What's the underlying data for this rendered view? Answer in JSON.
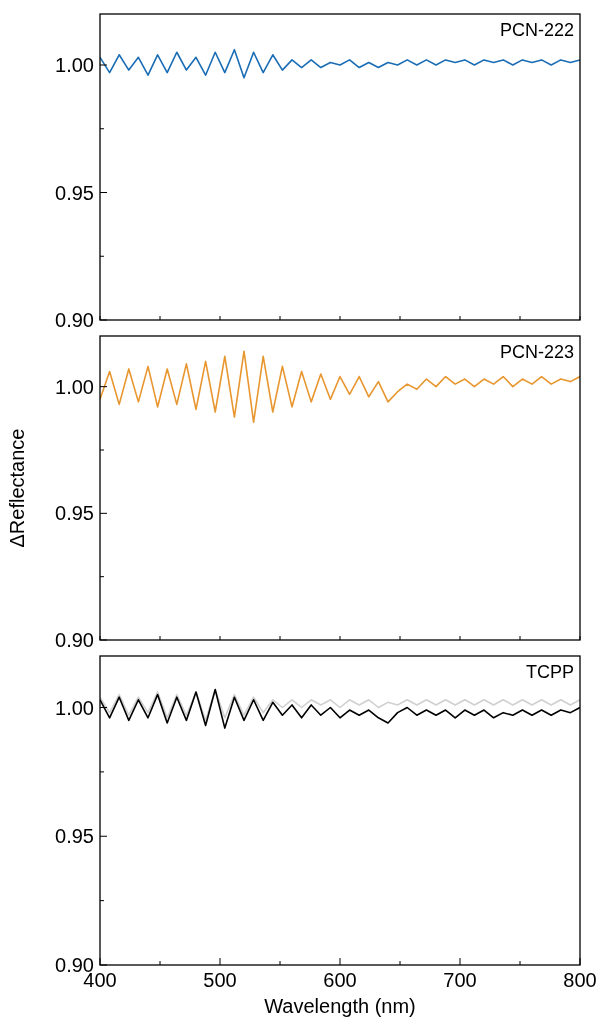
{
  "chart_data": [
    {
      "type": "line",
      "title": "PCN-222",
      "tick_labels": "y",
      "xlim": [
        400,
        800
      ],
      "ylim": [
        0.9,
        1.02
      ],
      "xticks": [
        {
          "value": 400,
          "label": null
        },
        {
          "value": 450,
          "label": null
        },
        {
          "value": 500,
          "label": null
        },
        {
          "value": 550,
          "label": null
        },
        {
          "value": 600,
          "label": null
        },
        {
          "value": 650,
          "label": null
        },
        {
          "value": 700,
          "label": null
        },
        {
          "value": 750,
          "label": null
        },
        {
          "value": 800,
          "label": null
        }
      ],
      "yticks": [
        {
          "value": 0.9,
          "label": "0.90"
        },
        {
          "value": 0.925,
          "label": null
        },
        {
          "value": 0.95,
          "label": "0.95"
        },
        {
          "value": 0.975,
          "label": null
        },
        {
          "value": 1,
          "label": "1.00"
        }
      ],
      "x": [
        400,
        408,
        416,
        424,
        432,
        440,
        448,
        456,
        464,
        472,
        480,
        488,
        496,
        504,
        512,
        520,
        528,
        536,
        544,
        552,
        560,
        568,
        576,
        584,
        592,
        600,
        608,
        616,
        624,
        632,
        640,
        648,
        656,
        664,
        672,
        680,
        688,
        696,
        704,
        712,
        720,
        728,
        736,
        744,
        752,
        760,
        768,
        776,
        784,
        792,
        800
      ],
      "series": [
        {
          "color": "#1a6db5",
          "values": [
            1.003,
            0.997,
            1.004,
            0.998,
            1.003,
            0.996,
            1.004,
            0.997,
            1.005,
            0.998,
            1.003,
            0.996,
            1.005,
            0.997,
            1.006,
            0.995,
            1.005,
            0.997,
            1.004,
            0.998,
            1.002,
            0.999,
            1.002,
            0.999,
            1.001,
            1.0,
            1.002,
            0.999,
            1.001,
            0.999,
            1.001,
            1.0,
            1.002,
            1.0,
            1.002,
            1.0,
            1.002,
            1.001,
            1.002,
            1.0,
            1.002,
            1.001,
            1.002,
            1.0,
            1.002,
            1.001,
            1.002,
            1.0,
            1.002,
            1.001,
            1.002
          ]
        }
      ]
    },
    {
      "type": "line",
      "title": "PCN-223",
      "ylabel": "ΔReflectance",
      "tick_labels": "y",
      "xlim": [
        400,
        800
      ],
      "ylim": [
        0.9,
        1.02
      ],
      "xticks": [
        {
          "value": 400,
          "label": null
        },
        {
          "value": 450,
          "label": null
        },
        {
          "value": 500,
          "label": null
        },
        {
          "value": 550,
          "label": null
        },
        {
          "value": 600,
          "label": null
        },
        {
          "value": 650,
          "label": null
        },
        {
          "value": 700,
          "label": null
        },
        {
          "value": 750,
          "label": null
        },
        {
          "value": 800,
          "label": null
        }
      ],
      "yticks": [
        {
          "value": 0.9,
          "label": "0.90"
        },
        {
          "value": 0.925,
          "label": null
        },
        {
          "value": 0.95,
          "label": "0.95"
        },
        {
          "value": 0.975,
          "label": null
        },
        {
          "value": 1,
          "label": "1.00"
        }
      ],
      "x": [
        400,
        408,
        416,
        424,
        432,
        440,
        448,
        456,
        464,
        472,
        480,
        488,
        496,
        504,
        512,
        520,
        528,
        536,
        544,
        552,
        560,
        568,
        576,
        584,
        592,
        600,
        608,
        616,
        624,
        632,
        640,
        648,
        656,
        664,
        672,
        680,
        688,
        696,
        704,
        712,
        720,
        728,
        736,
        744,
        752,
        760,
        768,
        776,
        784,
        792,
        800
      ],
      "series": [
        {
          "color": "#e8962f",
          "values": [
            0.995,
            1.006,
            0.993,
            1.007,
            0.994,
            1.008,
            0.992,
            1.007,
            0.993,
            1.009,
            0.991,
            1.01,
            0.99,
            1.012,
            0.988,
            1.014,
            0.986,
            1.012,
            0.99,
            1.008,
            0.992,
            1.006,
            0.994,
            1.005,
            0.995,
            1.004,
            0.997,
            1.004,
            0.996,
            1.002,
            0.994,
            0.998,
            1.001,
            0.999,
            1.003,
            1.0,
            1.004,
            1.001,
            1.003,
            1.0,
            1.003,
            1.001,
            1.004,
            1.0,
            1.003,
            1.001,
            1.004,
            1.001,
            1.003,
            1.002,
            1.004
          ]
        }
      ]
    },
    {
      "type": "line",
      "title": "TCPP",
      "xlabel": "Wavelength (nm)",
      "xlim": [
        400,
        800
      ],
      "ylim": [
        0.9,
        1.02
      ],
      "xticks": [
        400,
        {
          "value": 450,
          "label": null
        },
        500,
        {
          "value": 550,
          "label": null
        },
        600,
        {
          "value": 650,
          "label": null
        },
        700,
        {
          "value": 750,
          "label": null
        },
        800
      ],
      "yticks": [
        {
          "value": 0.9,
          "label": "0.90"
        },
        {
          "value": 0.925,
          "label": null
        },
        {
          "value": 0.95,
          "label": "0.95"
        },
        {
          "value": 0.975,
          "label": null
        },
        {
          "value": 1,
          "label": "1.00"
        }
      ],
      "x": [
        400,
        408,
        416,
        424,
        432,
        440,
        448,
        456,
        464,
        472,
        480,
        488,
        496,
        504,
        512,
        520,
        528,
        536,
        544,
        552,
        560,
        568,
        576,
        584,
        592,
        600,
        608,
        616,
        624,
        632,
        640,
        648,
        656,
        664,
        672,
        680,
        688,
        696,
        704,
        712,
        720,
        728,
        736,
        744,
        752,
        760,
        768,
        776,
        784,
        792,
        800
      ],
      "series": [
        {
          "color": "#d0d0d0",
          "values": [
            1.004,
            0.998,
            1.005,
            0.997,
            1.004,
            0.998,
            1.006,
            0.996,
            1.005,
            0.997,
            1.006,
            0.995,
            1.007,
            0.996,
            1.005,
            0.997,
            1.004,
            0.998,
            1.003,
            1.0,
            1.003,
            1.0,
            1.003,
            1.001,
            1.003,
            1.0,
            1.003,
            1.001,
            1.003,
            1.0,
            1.002,
            1.001,
            1.003,
            1.001,
            1.003,
            1.001,
            1.003,
            1.001,
            1.003,
            1.001,
            1.003,
            1.001,
            1.003,
            1.001,
            1.003,
            1.001,
            1.003,
            1.001,
            1.003,
            1.001,
            1.003
          ]
        },
        {
          "color": "#000000",
          "values": [
            1.003,
            0.996,
            1.004,
            0.995,
            1.003,
            0.996,
            1.005,
            0.994,
            1.004,
            0.995,
            1.006,
            0.993,
            1.007,
            0.992,
            1.004,
            0.995,
            1.003,
            0.995,
            1.002,
            0.997,
            1.001,
            0.996,
            1.001,
            0.997,
            1.0,
            0.996,
            0.999,
            0.997,
            0.999,
            0.996,
            0.994,
            0.998,
            1.0,
            0.997,
            0.999,
            0.997,
            0.999,
            0.996,
            0.999,
            0.997,
            0.999,
            0.996,
            0.998,
            0.997,
            0.999,
            0.997,
            0.999,
            0.997,
            0.999,
            0.998,
            1.0
          ]
        }
      ]
    }
  ]
}
